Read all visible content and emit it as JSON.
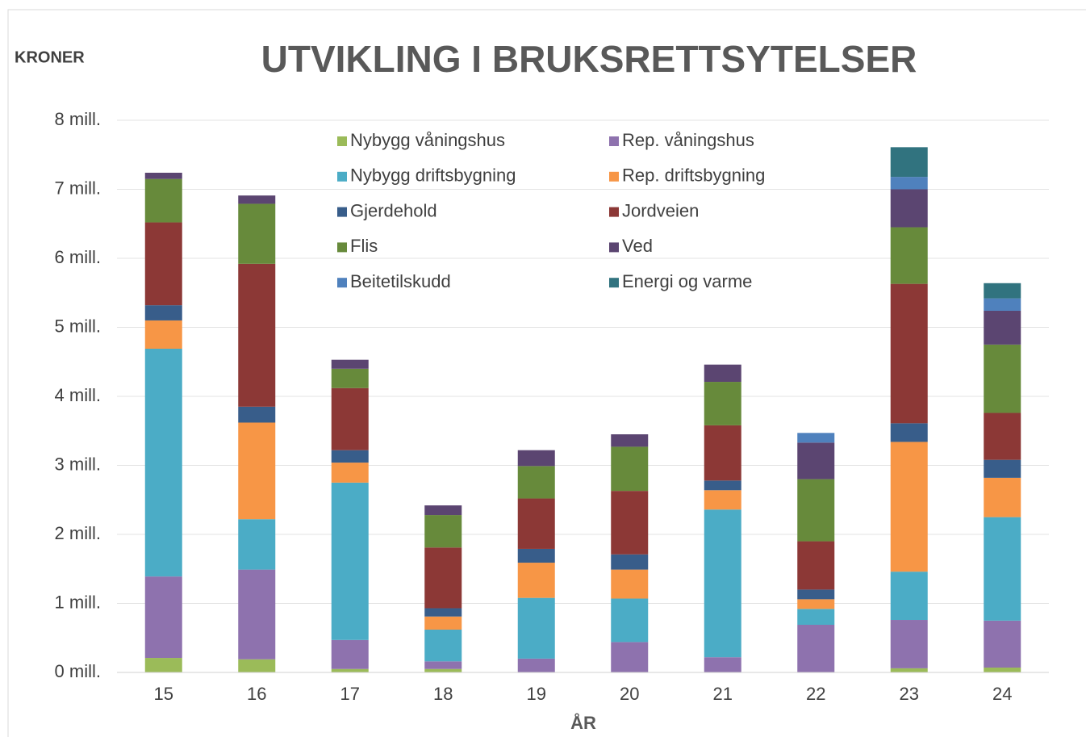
{
  "chart_data": {
    "type": "stacked_bar",
    "title": "UTVIKLING I BRUKSRETTSYTELSER",
    "y_label": "KRONER",
    "x_label": "ÅR",
    "categories": [
      "15",
      "16",
      "17",
      "18",
      "19",
      "20",
      "21",
      "22",
      "23",
      "24"
    ],
    "series": [
      {
        "name": "Nybygg våningshus",
        "color": "#9bbb59",
        "values": [
          0.21,
          0.19,
          0.05,
          0.05,
          0,
          0,
          0,
          0,
          0.06,
          0.07
        ]
      },
      {
        "name": "Rep. våningshus",
        "color": "#8e72ae",
        "values": [
          1.18,
          1.3,
          0.42,
          0.11,
          0.2,
          0.44,
          0.22,
          0.69,
          0.7,
          0.68
        ]
      },
      {
        "name": "Nybygg driftsbygning",
        "color": "#4bacc6",
        "values": [
          3.3,
          0.73,
          2.28,
          0.46,
          0.88,
          0.63,
          2.14,
          0.23,
          0.7,
          1.5
        ]
      },
      {
        "name": "Rep. driftsbygning",
        "color": "#f79646",
        "values": [
          0.41,
          1.4,
          0.29,
          0.19,
          0.51,
          0.42,
          0.28,
          0.14,
          1.88,
          0.57
        ]
      },
      {
        "name": "Gjerdehold",
        "color": "#385d8a",
        "values": [
          0.22,
          0.23,
          0.18,
          0.12,
          0.2,
          0.22,
          0.14,
          0.14,
          0.27,
          0.26
        ]
      },
      {
        "name": "Jordveien",
        "color": "#8c3836",
        "values": [
          1.2,
          2.07,
          0.9,
          0.88,
          0.73,
          0.92,
          0.8,
          0.7,
          2.02,
          0.68
        ]
      },
      {
        "name": "Flis",
        "color": "#678a3b",
        "values": [
          0.63,
          0.87,
          0.28,
          0.47,
          0.47,
          0.64,
          0.63,
          0.9,
          0.82,
          0.99
        ]
      },
      {
        "name": "Ved",
        "color": "#5b4571",
        "values": [
          0.09,
          0.12,
          0.13,
          0.14,
          0.23,
          0.18,
          0.25,
          0.53,
          0.55,
          0.49
        ]
      },
      {
        "name": "Beitetilskudd",
        "color": "#4f81bd",
        "values": [
          0,
          0,
          0,
          0,
          0,
          0,
          0,
          0.14,
          0.18,
          0.18
        ]
      },
      {
        "name": "Energi og varme",
        "color": "#31737f",
        "values": [
          0,
          0,
          0,
          0,
          0,
          0,
          0,
          0,
          0.43,
          0.22
        ]
      }
    ],
    "ylim": [
      0,
      8
    ],
    "yticks": [
      {
        "value": 0,
        "label": "0 mill."
      },
      {
        "value": 1,
        "label": "1 mill."
      },
      {
        "value": 2,
        "label": "2 mill."
      },
      {
        "value": 3,
        "label": "3 mill."
      },
      {
        "value": 4,
        "label": "4 mill."
      },
      {
        "value": 5,
        "label": "5 mill."
      },
      {
        "value": 6,
        "label": "6 mill."
      },
      {
        "value": 7,
        "label": "7 mill."
      },
      {
        "value": 8,
        "label": "8 mill."
      }
    ],
    "grid": true
  }
}
